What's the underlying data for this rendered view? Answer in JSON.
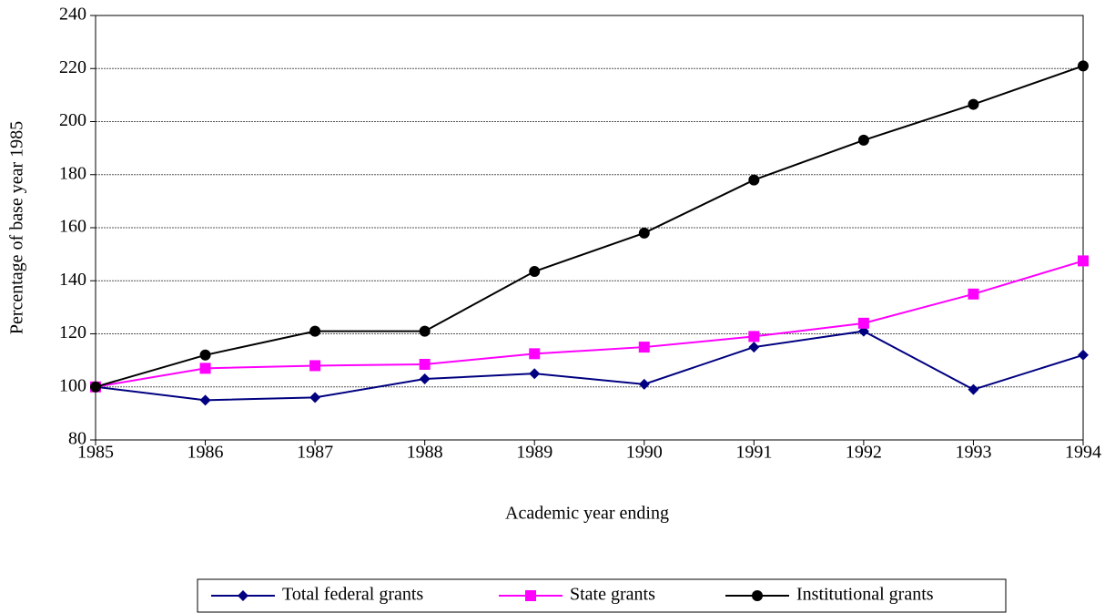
{
  "chart_data": {
    "type": "line",
    "xlabel": "Academic year ending",
    "ylabel": "Percentage of base year 1985",
    "x": [
      1985,
      1986,
      1987,
      1988,
      1989,
      1990,
      1991,
      1992,
      1993,
      1994
    ],
    "xlim": [
      1985,
      1994
    ],
    "xticks": [
      1985,
      1986,
      1987,
      1988,
      1989,
      1990,
      1991,
      1992,
      1993,
      1994
    ],
    "ylim": [
      80,
      240
    ],
    "yticks": [
      80,
      100,
      120,
      140,
      160,
      180,
      200,
      220,
      240
    ],
    "grid": true,
    "legend": "bottom",
    "series": [
      {
        "name": "Total federal grants",
        "color": "#000080",
        "marker": "diamond",
        "values": [
          100,
          95,
          96,
          103,
          105,
          101,
          115,
          121,
          99,
          112
        ]
      },
      {
        "name": "State grants",
        "color": "#ff00ff",
        "marker": "square",
        "values": [
          100,
          107,
          108,
          108.5,
          112.5,
          115,
          119,
          124,
          135,
          147.5
        ]
      },
      {
        "name": "Institutional grants",
        "color": "#000000",
        "marker": "circle",
        "values": [
          100,
          112,
          121,
          121,
          143.5,
          158,
          178,
          193,
          206.5,
          221
        ]
      }
    ]
  }
}
